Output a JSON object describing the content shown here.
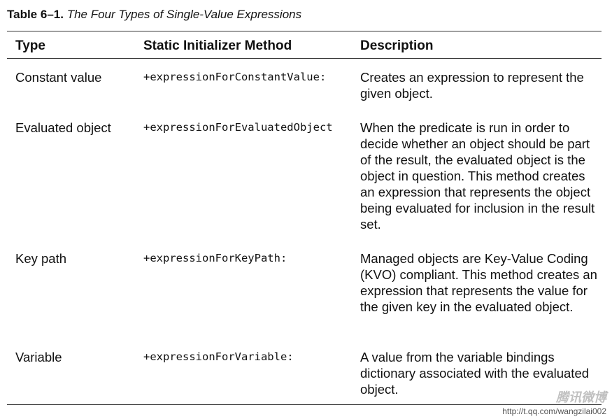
{
  "caption": {
    "label": "Table 6–1.",
    "title": "The Four Types of Single-Value Expressions"
  },
  "headers": {
    "type": "Type",
    "method": "Static Initializer Method",
    "description": "Description"
  },
  "rows": [
    {
      "type": "Constant value",
      "method": "+expressionForConstantValue:",
      "description": "Creates an expression to represent the given object."
    },
    {
      "type": "Evaluated object",
      "method": "+expressionForEvaluatedObject",
      "description": "When the predicate is run in order to decide whether an object should be part of the result, the evaluated object is the object in question. This method creates an expression that represents the object being evaluated for inclusion in the result set."
    },
    {
      "type": "Key path",
      "method": "+expressionForKeyPath:",
      "description": "Managed objects are Key-Value Coding (KVO) compliant. This method creates an expression that represents the value for the given key in the evaluated object."
    },
    {
      "type": "Variable",
      "method": "+expressionForVariable:",
      "description": "A value from the variable bindings dictionary associated with the evaluated object."
    }
  ],
  "watermark": {
    "brand": "腾讯微博",
    "url": "http://t.qq.com/wangzilai002"
  }
}
